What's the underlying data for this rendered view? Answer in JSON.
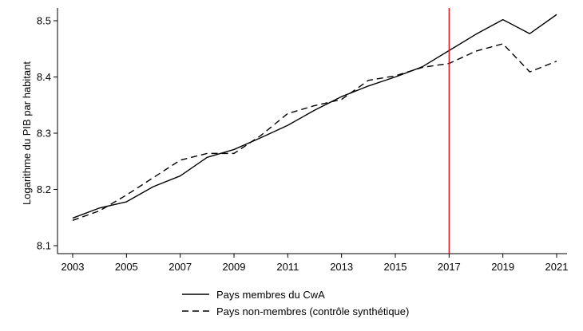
{
  "chart_data": {
    "type": "line",
    "title": "",
    "xlabel": "",
    "ylabel": "Logarithme du PIB par habitant",
    "xlim": [
      2003,
      2021
    ],
    "ylim": [
      8.1,
      8.5
    ],
    "x_ticks": [
      "2003",
      "2005",
      "2007",
      "2009",
      "2011",
      "2013",
      "2015",
      "2017",
      "2019",
      "2021"
    ],
    "y_ticks": [
      "8.1",
      "8.2",
      "8.3",
      "8.4",
      "8.5"
    ],
    "x": [
      2003,
      2004,
      2005,
      2006,
      2007,
      2008,
      2009,
      2010,
      2011,
      2012,
      2013,
      2014,
      2015,
      2016,
      2017,
      2018,
      2019,
      2020,
      2021
    ],
    "series": [
      {
        "name": "Pays membres du CwA",
        "style": "solid",
        "color": "#000000",
        "values": [
          8.149,
          8.167,
          8.178,
          8.205,
          8.224,
          8.257,
          8.271,
          8.292,
          8.314,
          8.341,
          8.365,
          8.384,
          8.4,
          8.418,
          8.447,
          8.476,
          8.502,
          8.477,
          8.511
        ]
      },
      {
        "name": "Pays non-membres (contrôle synthétique)",
        "style": "dashed",
        "color": "#000000",
        "values": [
          8.145,
          8.162,
          8.19,
          8.221,
          8.252,
          8.264,
          8.264,
          8.296,
          8.335,
          8.349,
          8.36,
          8.394,
          8.402,
          8.417,
          8.424,
          8.446,
          8.459,
          8.409,
          8.428
        ]
      }
    ],
    "reference_line": {
      "x": 2017,
      "color": "#e8141e"
    },
    "grid": false,
    "legend_position": "bottom"
  }
}
